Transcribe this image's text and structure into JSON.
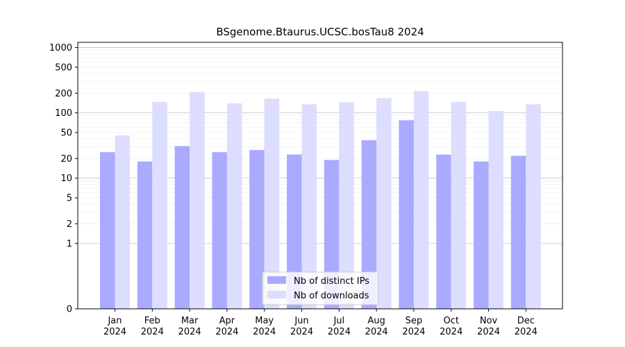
{
  "chart_data": {
    "type": "bar",
    "title": "BSgenome.Btaurus.UCSC.bosTau8 2024",
    "xlabel": "",
    "ylabel": "",
    "y_scale": "symlog",
    "ylim": [
      0,
      1200
    ],
    "y_ticks": [
      0,
      1,
      2,
      5,
      10,
      20,
      50,
      100,
      200,
      500,
      1000
    ],
    "y_tick_labels": [
      "0",
      "1",
      "2",
      "5",
      "10",
      "20",
      "50",
      "100",
      "200",
      "500",
      "1000"
    ],
    "categories": [
      "Jan",
      "Feb",
      "Mar",
      "Apr",
      "May",
      "Jun",
      "Jul",
      "Aug",
      "Sep",
      "Oct",
      "Nov",
      "Dec"
    ],
    "category_sublabel": "2024",
    "series": [
      {
        "name": "Nb of distinct IPs",
        "color": "#aaaaff",
        "values": [
          25,
          18,
          31,
          25,
          27,
          23,
          19,
          38,
          77,
          23,
          18,
          22
        ]
      },
      {
        "name": "Nb of downloads",
        "color": "#ddddff",
        "values": [
          45,
          147,
          208,
          140,
          165,
          135,
          145,
          168,
          215,
          147,
          107,
          135
        ]
      }
    ],
    "grid": true,
    "legend_position": "lower-center"
  }
}
